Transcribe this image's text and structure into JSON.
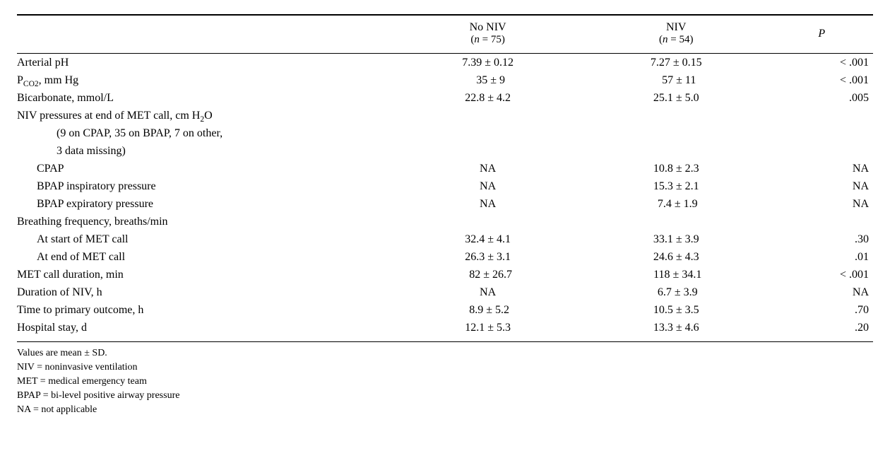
{
  "header": {
    "col_no_niv_line1": "No NIV",
    "col_no_niv_line2": "(n = 75)",
    "col_niv_line1": "NIV",
    "col_niv_line2": "(n = 54)",
    "col_p": "P",
    "n_italic": "n"
  },
  "rows": {
    "arterial_ph": {
      "label": "Arterial pH",
      "no_niv": "7.39 ± 0.12",
      "niv": "7.27 ± 0.15",
      "p": "< .001"
    },
    "pco2": {
      "label_pre": "P",
      "label_sub": "CO2",
      "label_post": ", mm Hg",
      "no_niv": "35 ± 9",
      "niv": "57 ± 11",
      "p": "< .001"
    },
    "bicarb": {
      "label": "Bicarbonate, mmol/L",
      "no_niv": "22.8 ± 4.2",
      "niv": "25.1 ± 5.0",
      "p": ".005"
    },
    "niv_press_header": {
      "label_pre": "NIV pressures at end of MET call, cm H",
      "label_sub": "2",
      "label_post": "O"
    },
    "niv_press_note1": {
      "label": "(9 on CPAP, 35 on BPAP, 7 on other,"
    },
    "niv_press_note2": {
      "label": "3 data missing)"
    },
    "cpap": {
      "label": "CPAP",
      "no_niv": "NA",
      "niv": "10.8 ± 2.3",
      "p": "NA"
    },
    "bpap_insp": {
      "label": "BPAP inspiratory pressure",
      "no_niv": "NA",
      "niv": "15.3 ± 2.1",
      "p": "NA"
    },
    "bpap_exp": {
      "label": "BPAP expiratory pressure",
      "no_niv": "NA",
      "niv": "7.4 ± 1.9",
      "p": "NA"
    },
    "bf_header": {
      "label": "Breathing frequency, breaths/min"
    },
    "bf_start": {
      "label": "At start of MET call",
      "no_niv": "32.4 ± 4.1",
      "niv": "33.1 ± 3.9",
      "p": ".30"
    },
    "bf_end": {
      "label": "At end of MET call",
      "no_niv": "26.3 ± 3.1",
      "niv": "24.6 ± 4.3",
      "p": ".01"
    },
    "met_dur": {
      "label": "MET call duration, min",
      "no_niv": "82 ± 26.7",
      "niv": "118 ± 34.1",
      "p": "< .001"
    },
    "niv_dur": {
      "label": "Duration of NIV, h",
      "no_niv": "NA",
      "niv": "6.7 ± 3.9",
      "p": "NA"
    },
    "time_primary": {
      "label": "Time to primary outcome, h",
      "no_niv": "8.9 ± 5.2",
      "niv": "10.5 ± 3.5",
      "p": ".70"
    },
    "hosp_stay": {
      "label": "Hospital stay, d",
      "no_niv": "12.1 ± 5.3",
      "niv": "13.3 ± 4.6",
      "p": ".20"
    }
  },
  "footnotes": {
    "f1": "Values are mean ± SD.",
    "f2": "NIV = noninvasive ventilation",
    "f3": "MET = medical emergency team",
    "f4": "BPAP = bi-level positive airway pressure",
    "f5": "NA = not applicable"
  },
  "layout": {
    "col_label_width": "44%",
    "col_no_niv_width": "22%",
    "col_niv_width": "22%",
    "col_p_width": "12%"
  }
}
